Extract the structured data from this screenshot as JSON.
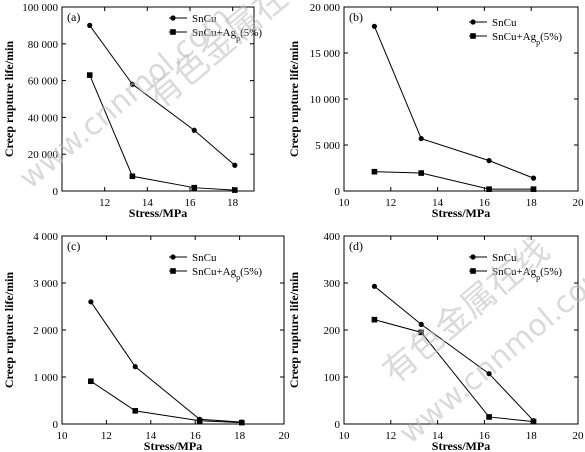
{
  "chart_data": [
    {
      "type": "line",
      "panel": "(a)",
      "xlabel": "Stress/MPa",
      "ylabel": "Creep rupture life/min",
      "xlim": [
        10,
        19
      ],
      "ylim": [
        0,
        100000
      ],
      "xticks": [
        12,
        14,
        16,
        18
      ],
      "xtick_labels": [
        "12",
        "14",
        "16",
        "18"
      ],
      "yticks": [
        0,
        20000,
        40000,
        60000,
        80000,
        100000
      ],
      "ytick_labels": [
        "0",
        "20 000",
        "40 000",
        "60 000",
        "80 000",
        "100 000"
      ],
      "series": [
        {
          "name": "SnCu",
          "marker": "circle",
          "x": [
            11.3,
            13.3,
            16.2,
            18.1
          ],
          "y": [
            90000,
            58000,
            33000,
            14000
          ]
        },
        {
          "name": "SnCu+Ag",
          "name_sub": "p",
          "name_suffix": "(5%)",
          "marker": "square",
          "x": [
            11.3,
            13.3,
            16.2,
            18.1
          ],
          "y": [
            63000,
            8000,
            1800,
            500
          ]
        }
      ]
    },
    {
      "type": "line",
      "panel": "(b)",
      "xlabel": "Stress/MPa",
      "ylabel": "Creep rupture life/min",
      "xlim": [
        10,
        20
      ],
      "ylim": [
        0,
        20000
      ],
      "xticks": [
        10,
        12,
        14,
        16,
        18,
        20
      ],
      "xtick_labels": [
        "10",
        "12",
        "14",
        "16",
        "18",
        "20"
      ],
      "yticks": [
        0,
        5000,
        10000,
        15000,
        20000
      ],
      "ytick_labels": [
        "0",
        "5 000",
        "10 000",
        "15 000",
        "20 000"
      ],
      "series": [
        {
          "name": "SnCu",
          "marker": "circle",
          "x": [
            11.3,
            13.3,
            16.2,
            18.1
          ],
          "y": [
            17900,
            5700,
            3300,
            1400
          ]
        },
        {
          "name": "SnCu+Ag",
          "name_sub": "p",
          "name_suffix": "(5%)",
          "marker": "square",
          "x": [
            11.3,
            13.3,
            16.2,
            18.1
          ],
          "y": [
            2100,
            1950,
            200,
            200
          ]
        }
      ]
    },
    {
      "type": "line",
      "panel": "(c)",
      "xlabel": "Stress/MPa",
      "ylabel": "Creep rupture life/min",
      "xlim": [
        10,
        20
      ],
      "ylim": [
        0,
        4000
      ],
      "xticks": [
        10,
        12,
        14,
        16,
        18,
        20
      ],
      "xtick_labels": [
        "10",
        "12",
        "14",
        "16",
        "18",
        "20"
      ],
      "yticks": [
        0,
        1000,
        2000,
        3000,
        4000
      ],
      "ytick_labels": [
        "0",
        "1 000",
        "2 000",
        "3 000",
        "4 000"
      ],
      "series": [
        {
          "name": "SnCu",
          "marker": "circle",
          "x": [
            11.3,
            13.3,
            16.2,
            18.1
          ],
          "y": [
            2600,
            1220,
            100,
            40
          ]
        },
        {
          "name": "SnCu+Ag",
          "name_sub": "p",
          "name_suffix": "(5%)",
          "marker": "square",
          "x": [
            11.3,
            13.3,
            16.2,
            18.1
          ],
          "y": [
            910,
            280,
            70,
            30
          ]
        }
      ]
    },
    {
      "type": "line",
      "panel": "(d)",
      "xlabel": "Stress/MPa",
      "ylabel": "Creep rupture life/min",
      "xlim": [
        10,
        20
      ],
      "ylim": [
        0,
        400
      ],
      "xticks": [
        10,
        12,
        14,
        16,
        18,
        20
      ],
      "xtick_labels": [
        "10",
        "12",
        "14",
        "16",
        "18",
        "20"
      ],
      "yticks": [
        0,
        100,
        200,
        300,
        400
      ],
      "ytick_labels": [
        "0",
        "100",
        "200",
        "300",
        "400"
      ],
      "series": [
        {
          "name": "SnCu",
          "marker": "circle",
          "x": [
            11.3,
            13.3,
            16.2,
            18.1
          ],
          "y": [
            293,
            212,
            107,
            7
          ]
        },
        {
          "name": "SnCu+Ag",
          "name_sub": "p",
          "name_suffix": "(5%)",
          "marker": "square",
          "x": [
            11.3,
            13.3,
            16.2,
            18.1
          ],
          "y": [
            222,
            195,
            15,
            5
          ]
        }
      ]
    }
  ],
  "watermark": {
    "text_cn": "有色金属在线",
    "text_url": "www.cnnmol.com"
  }
}
